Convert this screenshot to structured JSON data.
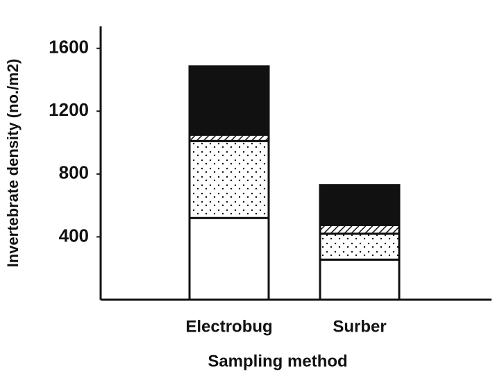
{
  "chart_data": {
    "type": "stacked-bar",
    "x_label": "Sampling method",
    "y_label": "Invertebrate density (no./m2)",
    "categories": [
      "Electrobug",
      "Surber"
    ],
    "series": [
      {
        "pattern": "blank",
        "color": "#ffffff",
        "values": [
          520,
          255
        ]
      },
      {
        "pattern": "dots",
        "color": "#ffffff",
        "values": [
          490,
          165
        ]
      },
      {
        "pattern": "hatch",
        "color": "#ffffff",
        "values": [
          40,
          55
        ]
      },
      {
        "pattern": "solid",
        "color": "#111111",
        "values": [
          435,
          255
        ]
      }
    ],
    "ylim": [
      0,
      1740
    ],
    "yticks": [
      400,
      800,
      1200,
      1600
    ],
    "grid": false
  }
}
